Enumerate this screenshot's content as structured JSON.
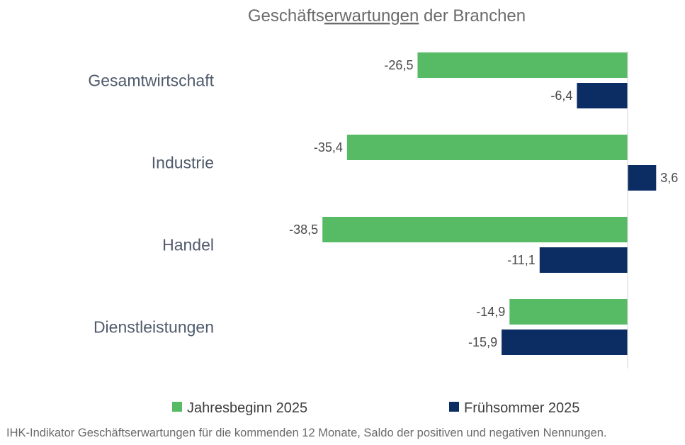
{
  "chart_data": {
    "type": "bar",
    "orientation": "horizontal",
    "title": "Geschäftserwartungen der Branchen",
    "title_prefix": "Geschäfts",
    "title_underlined": "erwartungen",
    "title_suffix": " der Branchen",
    "categories": [
      "Gesamtwirtschaft",
      "Industrie",
      "Handel",
      "Dienstleistungen"
    ],
    "series": [
      {
        "name": "Jahresbeginn 2025",
        "color": "#57bb66",
        "values": [
          -26.5,
          -35.4,
          -38.5,
          -14.9
        ],
        "labels": [
          "-26,5",
          "-35,4",
          "-38,5",
          "-14,9"
        ]
      },
      {
        "name": "Frühsommer 2025",
        "color": "#0b2d63",
        "values": [
          -6.4,
          3.6,
          -11.1,
          -15.9
        ],
        "labels": [
          "-6,4",
          "3,6",
          "-11,1",
          "-15,9"
        ]
      }
    ],
    "xlim": [
      -40,
      5
    ],
    "grid": false,
    "legend": "bottom",
    "xlabel": "",
    "ylabel": ""
  },
  "footnote": "IHK-Indikator Geschäftserwartungen für die kommenden 12 Monate, Saldo der positiven und negativen Nennungen."
}
